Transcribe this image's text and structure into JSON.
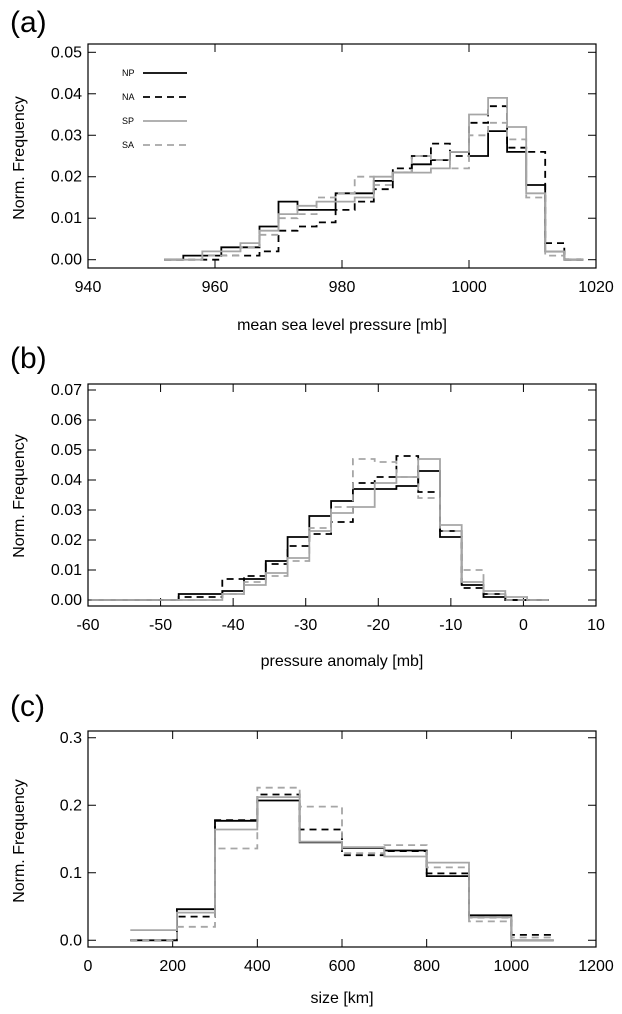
{
  "colors": {
    "black": "#000000",
    "gray": "#a6a6a6",
    "frame": "#000000"
  },
  "chart_data": [
    {
      "type": "line",
      "panel_label": "(a)",
      "xlabel": "mean sea level pressure [mb]",
      "ylabel": "Norm. Frequency",
      "xlim": [
        940,
        1020
      ],
      "ylim": [
        -0.002,
        0.052
      ],
      "xticks": [
        940,
        960,
        980,
        1000,
        1020
      ],
      "xtick_labels": [
        "940",
        "960",
        "980",
        "1000",
        "1020"
      ],
      "yticks": [
        0.0,
        0.01,
        0.02,
        0.03,
        0.04,
        0.05
      ],
      "ytick_labels": [
        "0.00",
        "0.01",
        "0.02",
        "0.03",
        "0.04",
        "0.05"
      ],
      "legend": {
        "position": "top-left",
        "entries": [
          "NP",
          "NA",
          "SP",
          "SA"
        ]
      },
      "series": [
        {
          "name": "NP",
          "color": "#000000",
          "dash": "solid",
          "x": [
            952,
            955,
            958,
            961,
            964,
            967,
            970,
            973,
            976,
            979,
            982,
            985,
            988,
            991,
            994,
            997,
            1000,
            1003,
            1006,
            1009,
            1012,
            1015,
            1018
          ],
          "y": [
            0.0,
            0.001,
            0.001,
            0.003,
            0.003,
            0.008,
            0.014,
            0.012,
            0.012,
            0.016,
            0.016,
            0.019,
            0.021,
            0.023,
            0.024,
            0.026,
            0.025,
            0.031,
            0.026,
            0.018,
            0.002,
            0.0,
            0.0
          ]
        },
        {
          "name": "NA",
          "color": "#000000",
          "dash": "dashed",
          "x": [
            952,
            955,
            958,
            961,
            964,
            967,
            970,
            973,
            976,
            979,
            982,
            985,
            988,
            991,
            994,
            997,
            1000,
            1003,
            1006,
            1009,
            1012,
            1015,
            1018
          ],
          "y": [
            0.0,
            0.0,
            0.0,
            0.001,
            0.001,
            0.002,
            0.007,
            0.008,
            0.009,
            0.012,
            0.014,
            0.017,
            0.022,
            0.025,
            0.028,
            0.025,
            0.033,
            0.037,
            0.027,
            0.026,
            0.004,
            0.0,
            0.0
          ]
        },
        {
          "name": "SP",
          "color": "#a6a6a6",
          "dash": "solid",
          "x": [
            952,
            955,
            958,
            961,
            964,
            967,
            970,
            973,
            976,
            979,
            982,
            985,
            988,
            991,
            994,
            997,
            1000,
            1003,
            1006,
            1009,
            1012,
            1015,
            1018
          ],
          "y": [
            0.0,
            0.0,
            0.002,
            0.002,
            0.004,
            0.007,
            0.011,
            0.013,
            0.014,
            0.014,
            0.015,
            0.02,
            0.021,
            0.021,
            0.022,
            0.026,
            0.035,
            0.039,
            0.032,
            0.016,
            0.002,
            0.0,
            0.0
          ]
        },
        {
          "name": "SA",
          "color": "#a6a6a6",
          "dash": "dashed",
          "x": [
            952,
            955,
            958,
            961,
            964,
            967,
            970,
            973,
            976,
            979,
            982,
            985,
            988,
            991,
            994,
            997,
            1000,
            1003,
            1006,
            1009,
            1012,
            1015,
            1018
          ],
          "y": [
            0.0,
            0.0,
            0.001,
            0.001,
            0.003,
            0.006,
            0.01,
            0.011,
            0.015,
            0.016,
            0.02,
            0.018,
            0.021,
            0.025,
            0.024,
            0.022,
            0.03,
            0.033,
            0.029,
            0.015,
            0.001,
            0.0,
            0.0
          ]
        }
      ]
    },
    {
      "type": "line",
      "panel_label": "(b)",
      "xlabel": "pressure anomaly [mb]",
      "ylabel": "Norm. Frequency",
      "xlim": [
        -60,
        10
      ],
      "ylim": [
        -0.002,
        0.072
      ],
      "xticks": [
        -60,
        -50,
        -40,
        -30,
        -20,
        -10,
        0,
        10
      ],
      "xtick_labels": [
        "-60",
        "-50",
        "-40",
        "-30",
        "-20",
        "-10",
        "0",
        "10"
      ],
      "yticks": [
        0.0,
        0.01,
        0.02,
        0.03,
        0.04,
        0.05,
        0.06,
        0.07
      ],
      "ytick_labels": [
        "0.00",
        "0.01",
        "0.02",
        "0.03",
        "0.04",
        "0.05",
        "0.06",
        "0.07"
      ],
      "series": [
        {
          "name": "NP",
          "color": "#000000",
          "dash": "solid",
          "x": [
            -59.5,
            -53.5,
            -47.5,
            -41.5,
            -38.5,
            -35.5,
            -32.5,
            -29.5,
            -26.5,
            -23.5,
            -20.5,
            -17.5,
            -14.5,
            -11.5,
            -8.5,
            -5.5,
            -2.5,
            0.5,
            3.5
          ],
          "y": [
            0.0,
            0.0,
            0.002,
            0.003,
            0.007,
            0.013,
            0.021,
            0.028,
            0.033,
            0.037,
            0.037,
            0.038,
            0.043,
            0.021,
            0.005,
            0.001,
            0.0,
            0.0,
            0.0
          ]
        },
        {
          "name": "NA",
          "color": "#000000",
          "dash": "dashed",
          "x": [
            -59.5,
            -53.5,
            -47.5,
            -41.5,
            -38.5,
            -35.5,
            -32.5,
            -29.5,
            -26.5,
            -23.5,
            -20.5,
            -17.5,
            -14.5,
            -11.5,
            -8.5,
            -5.5,
            -2.5,
            0.5,
            3.5
          ],
          "y": [
            0.0,
            0.0,
            0.001,
            0.007,
            0.008,
            0.012,
            0.018,
            0.022,
            0.026,
            0.039,
            0.041,
            0.048,
            0.036,
            0.023,
            0.004,
            0.002,
            0.0,
            0.0,
            0.0
          ]
        },
        {
          "name": "SP",
          "color": "#a6a6a6",
          "dash": "solid",
          "x": [
            -59.5,
            -53.5,
            -47.5,
            -41.5,
            -38.5,
            -35.5,
            -32.5,
            -29.5,
            -26.5,
            -23.5,
            -20.5,
            -17.5,
            -14.5,
            -11.5,
            -8.5,
            -5.5,
            -2.5,
            0.5,
            3.5
          ],
          "y": [
            0.0,
            0.0,
            0.0,
            0.002,
            0.005,
            0.009,
            0.014,
            0.023,
            0.029,
            0.031,
            0.039,
            0.041,
            0.047,
            0.025,
            0.006,
            0.003,
            0.001,
            0.0,
            0.0
          ]
        },
        {
          "name": "SA",
          "color": "#a6a6a6",
          "dash": "dashed",
          "x": [
            -59.5,
            -53.5,
            -47.5,
            -41.5,
            -38.5,
            -35.5,
            -32.5,
            -29.5,
            -26.5,
            -23.5,
            -20.5,
            -17.5,
            -14.5,
            -11.5,
            -8.5,
            -5.5,
            -2.5,
            0.5,
            3.5
          ],
          "y": [
            0.0,
            0.0,
            0.0,
            0.002,
            0.006,
            0.008,
            0.013,
            0.024,
            0.031,
            0.047,
            0.046,
            0.041,
            0.034,
            0.023,
            0.01,
            0.002,
            0.0,
            0.0,
            0.0
          ]
        }
      ]
    },
    {
      "type": "line",
      "panel_label": "(c)",
      "xlabel": "size [km]",
      "ylabel": "Norm. Frequency",
      "xlim": [
        0,
        1200
      ],
      "ylim": [
        -0.01,
        0.31
      ],
      "xticks": [
        0,
        200,
        400,
        600,
        800,
        1000,
        1200
      ],
      "xtick_labels": [
        "0",
        "200",
        "400",
        "600",
        "800",
        "1000",
        "1200"
      ],
      "yticks": [
        0.0,
        0.1,
        0.2,
        0.3
      ],
      "ytick_labels": [
        "0.0",
        "0.1",
        "0.2",
        "0.3"
      ],
      "series": [
        {
          "name": "NP",
          "color": "#000000",
          "dash": "solid",
          "x": [
            100,
            210,
            300,
            400,
            500,
            600,
            700,
            800,
            900,
            1000,
            1100
          ],
          "y": [
            0.0,
            0.046,
            0.177,
            0.207,
            0.145,
            0.137,
            0.133,
            0.095,
            0.037,
            0.0,
            0.0
          ]
        },
        {
          "name": "NA",
          "color": "#000000",
          "dash": "dashed",
          "x": [
            100,
            210,
            300,
            400,
            500,
            600,
            700,
            800,
            900,
            1000,
            1100
          ],
          "y": [
            0.0,
            0.035,
            0.178,
            0.216,
            0.164,
            0.126,
            0.132,
            0.099,
            0.034,
            0.008,
            0.0
          ]
        },
        {
          "name": "SP",
          "color": "#a6a6a6",
          "dash": "solid",
          "x": [
            100,
            210,
            300,
            400,
            500,
            600,
            700,
            800,
            900,
            1000,
            1100
          ],
          "y": [
            0.015,
            0.041,
            0.164,
            0.212,
            0.146,
            0.138,
            0.124,
            0.115,
            0.034,
            0.0,
            0.0
          ]
        },
        {
          "name": "SA",
          "color": "#a6a6a6",
          "dash": "dashed",
          "x": [
            100,
            210,
            300,
            400,
            500,
            600,
            700,
            800,
            900,
            1000,
            1100
          ],
          "y": [
            0.0,
            0.02,
            0.136,
            0.226,
            0.198,
            0.129,
            0.141,
            0.108,
            0.028,
            0.004,
            0.0
          ]
        }
      ]
    }
  ]
}
